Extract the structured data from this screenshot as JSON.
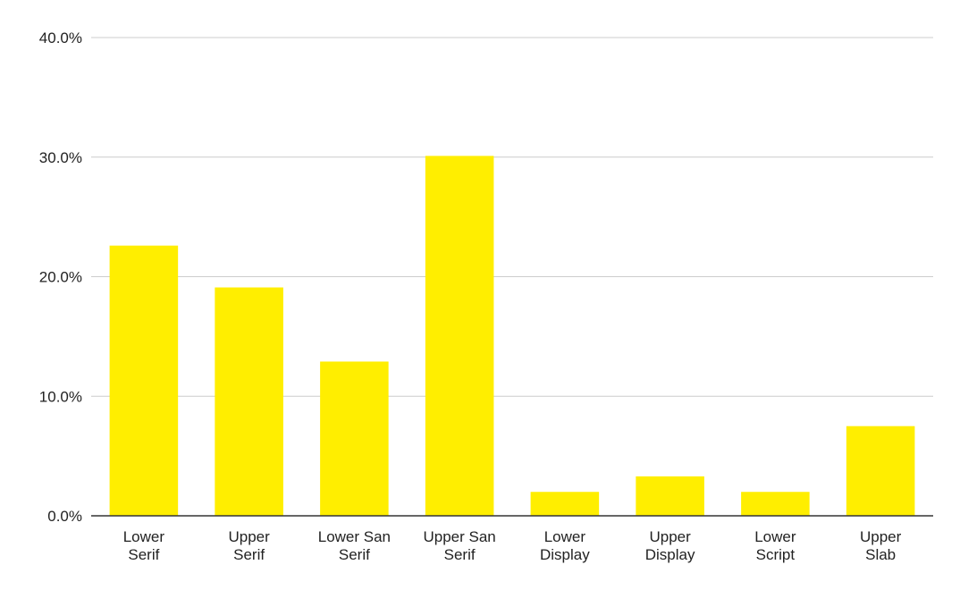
{
  "chart_data": {
    "type": "bar",
    "categories": [
      "Lower Serif",
      "Upper Serif",
      "Lower San Serif",
      "Upper San Serif",
      "Lower Display",
      "Upper Display",
      "Lower Script",
      "Upper Slab"
    ],
    "values": [
      22.6,
      19.1,
      12.9,
      30.1,
      2.0,
      3.3,
      2.0,
      7.5
    ],
    "color": "#ffee00",
    "ylim": [
      0,
      40
    ],
    "yticks": [
      {
        "value": 0,
        "label": "0.0%"
      },
      {
        "value": 10,
        "label": "10.0%"
      },
      {
        "value": 20,
        "label": "20.0%"
      },
      {
        "value": 30,
        "label": "30.0%"
      },
      {
        "value": 40,
        "label": "40.0%"
      }
    ],
    "grid": true
  }
}
